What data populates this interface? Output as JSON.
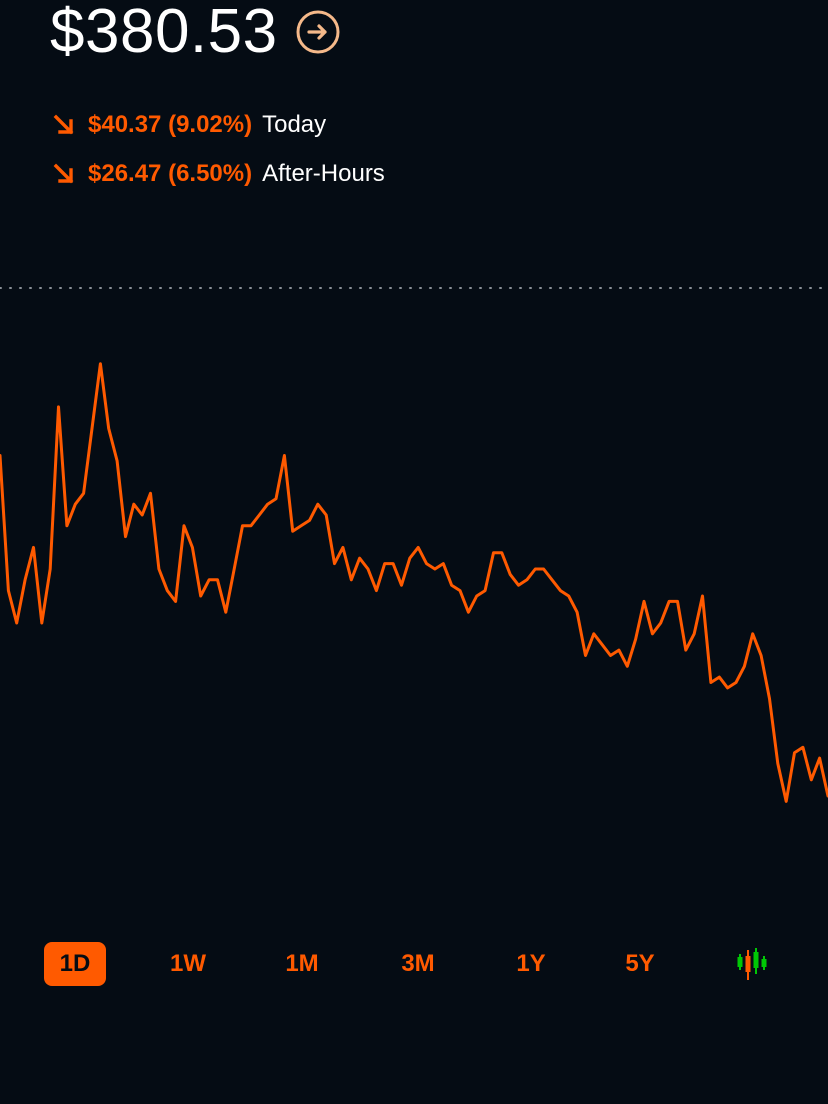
{
  "quote": {
    "price": "$380.53",
    "today": {
      "change": "$40.37 (9.02%)",
      "label": "Today"
    },
    "after_hours": {
      "change": "$26.47 (6.50%)",
      "label": "After-Hours"
    }
  },
  "icons": {
    "price_detail": "arrow-right-circle-icon",
    "change_direction": "arrow-down-right-icon",
    "chart_style": "candlestick-icon"
  },
  "ranges": [
    {
      "label": "1D",
      "active": true
    },
    {
      "label": "1W",
      "active": false
    },
    {
      "label": "1M",
      "active": false
    },
    {
      "label": "3M",
      "active": false
    },
    {
      "label": "1Y",
      "active": false
    },
    {
      "label": "5Y",
      "active": false
    }
  ],
  "colors": {
    "background": "#050c14",
    "accent": "#ff5a00",
    "price_detail_icon": "#f5b98a",
    "reference_line": "#8a9097",
    "candle_green": "#00c805",
    "candle_orange": "#ff5a00"
  },
  "chart_data": {
    "type": "line",
    "series": [
      {
        "values": [
          408.5,
          396.0,
          393.0,
          397.0,
          400.0,
          393.0,
          398.0,
          413.0,
          402.0,
          404.0,
          405.0,
          411.0,
          417.0,
          411.0,
          408.0,
          401.0,
          404.0,
          403.0,
          405.0,
          398.0,
          396.0,
          395.0,
          402.0,
          400.0,
          395.5,
          397.0,
          397.0,
          394.0,
          398.0,
          402.0,
          402.0,
          403.0,
          404.0,
          404.5,
          408.5,
          401.5,
          402.0,
          402.5,
          404.0,
          403.0,
          398.5,
          400.0,
          397.0,
          399.0,
          398.0,
          396.0,
          398.5,
          398.5,
          396.5,
          399.0,
          400.0,
          398.5,
          398.0,
          398.5,
          396.5,
          396.0,
          394.0,
          395.5,
          396.0,
          399.5,
          399.5,
          397.5,
          396.5,
          397.0,
          398.0,
          398.0,
          397.0,
          396.0,
          395.5,
          394.0,
          390.0,
          392.0,
          391.0,
          390.0,
          390.5,
          389.0,
          391.5,
          395.0,
          392.0,
          393.0,
          395.0,
          395.0,
          390.5,
          392.0,
          395.5,
          387.5,
          388.0,
          387.0,
          387.5,
          389.0,
          392.0,
          390.0,
          386.0,
          380.0,
          376.5,
          381.0,
          381.5,
          378.5,
          380.5,
          377.0
        ]
      }
    ],
    "reference_line": {
      "style": "dotted"
    },
    "xlabel": "",
    "ylabel": "",
    "ylim": [
      372,
      424
    ],
    "grid": false,
    "axes_visible": false
  }
}
